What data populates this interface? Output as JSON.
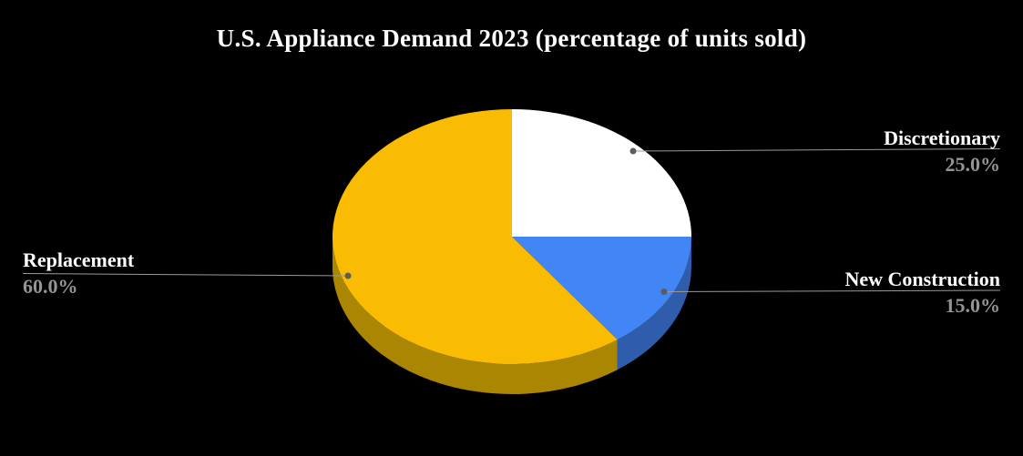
{
  "title": "U.S. Appliance Demand 2023 (percentage of units sold)",
  "background_color": "#000000",
  "text_colors": {
    "title": "#ffffff",
    "slice_label": "#ffffff",
    "percent_value": "#949494",
    "leader_line": "#9a9a9a",
    "leader_dot": "#5c5c5c"
  },
  "chart_data": {
    "type": "pie",
    "title": "U.S. Appliance Demand 2023 (percentage of units sold)",
    "categories": [
      "Discretionary",
      "New Construction",
      "Replacement"
    ],
    "values": [
      25.0,
      15.0,
      60.0
    ],
    "units": "percentage of units sold",
    "start_angle_deg": 90,
    "direction": "clockwise",
    "style": "3d",
    "legend_position": "none (external callout labels with leader lines)",
    "background": "#000000",
    "slices": [
      {
        "label": "Discretionary",
        "value": 25.0,
        "display": "25.0%",
        "color": "#ffffff",
        "side_color": "#cfcfcf"
      },
      {
        "label": "New Construction",
        "value": 15.0,
        "display": "15.0%",
        "color": "#4285f4",
        "side_color": "#2f5dac"
      },
      {
        "label": "Replacement",
        "value": 60.0,
        "display": "60.0%",
        "color": "#f9bc02",
        "side_color": "#aa8603"
      }
    ]
  }
}
